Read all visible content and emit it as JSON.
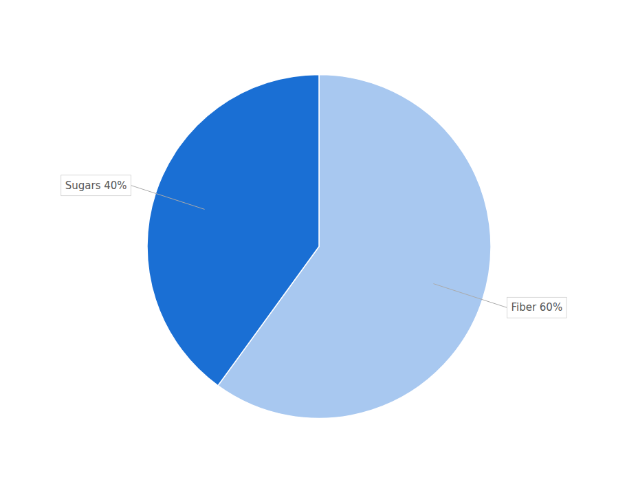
{
  "chart_data": {
    "type": "pie",
    "values": [
      60,
      40
    ],
    "colors": [
      "#a8c8f0",
      "#1a6fd4"
    ],
    "data_labels": true,
    "value_labels": [
      "Fiber 60%",
      "Sugars 40%"
    ]
  }
}
